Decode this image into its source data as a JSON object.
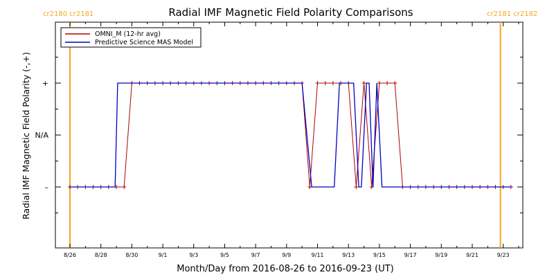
{
  "chart_data": {
    "type": "line",
    "title": "Radial IMF Magnetic Field Polarity Comparisons",
    "xlabel": "Month/Day from 2016-08-26 to 2016-09-23 (UT)",
    "ylabel": "Radial IMF Magnetic Field Polarity (-,+)",
    "x_ticks": [
      "8/26",
      "8/28",
      "8/30",
      "9/1",
      "9/3",
      "9/5",
      "9/7",
      "9/9",
      "9/11",
      "9/13",
      "9/15",
      "9/17",
      "9/19",
      "9/21",
      "9/23"
    ],
    "y_ticks": [
      {
        "value": -1,
        "label": "–"
      },
      {
        "value": 0,
        "label": "N/A"
      },
      {
        "value": 1,
        "label": "+"
      }
    ],
    "xlim": [
      "2016-08-26",
      "2016-09-24"
    ],
    "ylim": [
      -2,
      2
    ],
    "legend_position": "top-left",
    "legend_entries": [
      "OMNI_M (12-hr avg)",
      "Predictive Science MAS Model"
    ],
    "carrington_markers": [
      {
        "date": "2016-08-26",
        "label": "cr2180 cr2181",
        "color": "#f5a623"
      },
      {
        "date": "2016-09-23",
        "label": "cr2181 cr2182",
        "color": "#f5a623"
      }
    ],
    "series": [
      {
        "name": "OMNI_M (12-hr avg)",
        "color": "#b00000",
        "marker": "+",
        "points": [
          [
            "2016-08-26 00:00",
            -1
          ],
          [
            "2016-08-26 12:00",
            -1
          ],
          [
            "2016-08-27 00:00",
            -1
          ],
          [
            "2016-08-27 12:00",
            -1
          ],
          [
            "2016-08-28 00:00",
            -1
          ],
          [
            "2016-08-28 12:00",
            -1
          ],
          [
            "2016-08-29 00:00",
            -1
          ],
          [
            "2016-08-29 12:00",
            -1
          ],
          [
            "2016-08-30 00:00",
            1
          ],
          [
            "2016-08-30 12:00",
            1
          ],
          [
            "2016-08-31 00:00",
            1
          ],
          [
            "2016-08-31 12:00",
            1
          ],
          [
            "2016-09-01 00:00",
            1
          ],
          [
            "2016-09-01 12:00",
            1
          ],
          [
            "2016-09-02 00:00",
            1
          ],
          [
            "2016-09-02 12:00",
            1
          ],
          [
            "2016-09-03 00:00",
            1
          ],
          [
            "2016-09-03 12:00",
            1
          ],
          [
            "2016-09-04 00:00",
            1
          ],
          [
            "2016-09-04 12:00",
            1
          ],
          [
            "2016-09-05 00:00",
            1
          ],
          [
            "2016-09-05 12:00",
            1
          ],
          [
            "2016-09-06 00:00",
            1
          ],
          [
            "2016-09-06 12:00",
            1
          ],
          [
            "2016-09-07 00:00",
            1
          ],
          [
            "2016-09-07 12:00",
            1
          ],
          [
            "2016-09-08 00:00",
            1
          ],
          [
            "2016-09-08 12:00",
            1
          ],
          [
            "2016-09-09 00:00",
            1
          ],
          [
            "2016-09-09 12:00",
            1
          ],
          [
            "2016-09-10 00:00",
            1
          ],
          [
            "2016-09-10 12:00",
            -1
          ],
          [
            "2016-09-11 00:00",
            1
          ],
          [
            "2016-09-11 12:00",
            1
          ],
          [
            "2016-09-12 00:00",
            1
          ],
          [
            "2016-09-12 12:00",
            1
          ],
          [
            "2016-09-13 00:00",
            1
          ],
          [
            "2016-09-13 12:00",
            -1
          ],
          [
            "2016-09-14 00:00",
            1
          ],
          [
            "2016-09-14 12:00",
            -1
          ],
          [
            "2016-09-15 00:00",
            1
          ],
          [
            "2016-09-15 12:00",
            1
          ],
          [
            "2016-09-16 00:00",
            1
          ],
          [
            "2016-09-16 12:00",
            -1
          ],
          [
            "2016-09-17 00:00",
            -1
          ],
          [
            "2016-09-17 12:00",
            -1
          ],
          [
            "2016-09-18 00:00",
            -1
          ],
          [
            "2016-09-18 12:00",
            -1
          ],
          [
            "2016-09-19 00:00",
            -1
          ],
          [
            "2016-09-19 12:00",
            -1
          ],
          [
            "2016-09-20 00:00",
            -1
          ],
          [
            "2016-09-20 12:00",
            -1
          ],
          [
            "2016-09-21 00:00",
            -1
          ],
          [
            "2016-09-21 12:00",
            -1
          ],
          [
            "2016-09-22 00:00",
            -1
          ],
          [
            "2016-09-22 12:00",
            -1
          ],
          [
            "2016-09-23 00:00",
            -1
          ],
          [
            "2016-09-23 12:00",
            -1
          ]
        ]
      },
      {
        "name": "Predictive Science MAS Model",
        "color": "#0000c0",
        "marker": "none",
        "points": [
          [
            "2016-08-26 00:00",
            -1
          ],
          [
            "2016-08-28 22:00",
            -1
          ],
          [
            "2016-08-29 02:00",
            1
          ],
          [
            "2016-09-10 00:00",
            1
          ],
          [
            "2016-09-10 15:00",
            -1
          ],
          [
            "2016-09-12 02:00",
            -1
          ],
          [
            "2016-09-12 10:00",
            1
          ],
          [
            "2016-09-13 08:00",
            1
          ],
          [
            "2016-09-13 16:00",
            -1
          ],
          [
            "2016-09-13 20:00",
            -1
          ],
          [
            "2016-09-14 04:00",
            1
          ],
          [
            "2016-09-14 08:00",
            1
          ],
          [
            "2016-09-14 14:00",
            -1
          ],
          [
            "2016-09-14 20:00",
            1
          ],
          [
            "2016-09-15 04:00",
            -1
          ],
          [
            "2016-09-23 12:00",
            -1
          ]
        ]
      }
    ]
  }
}
